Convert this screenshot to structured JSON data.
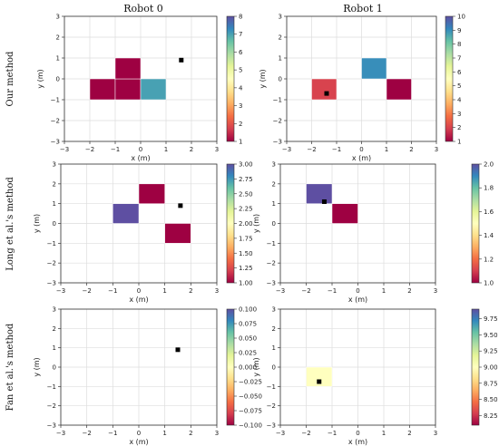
{
  "column_titles": [
    "Robot 0",
    "Robot 1"
  ],
  "row_titles": [
    "Our method",
    "Long et al.'s method",
    "Fan et al.'s method"
  ],
  "chart_data": [
    {
      "type": "heatmap",
      "method": "Our method",
      "robot": "Robot 0",
      "xlabel": "x (m)",
      "ylabel": "y (m)",
      "xlim": [
        -3,
        3
      ],
      "ylim": [
        -3,
        3
      ],
      "xticks": [
        "−3",
        "−2",
        "−1",
        "0",
        "1",
        "2",
        "3"
      ],
      "yticks": [
        "−3",
        "−2",
        "−1",
        "0",
        "1",
        "2",
        "3"
      ],
      "cells": [
        {
          "x0": -2,
          "x1": -1,
          "y0": -1,
          "y1": 0,
          "value": 1
        },
        {
          "x0": -1,
          "x1": 0,
          "y0": -1,
          "y1": 0,
          "value": 1
        },
        {
          "x0": -1,
          "x1": 0,
          "y0": 0,
          "y1": 1,
          "value": 1
        },
        {
          "x0": 0,
          "x1": 1,
          "y0": -1,
          "y1": 0,
          "value": 7
        }
      ],
      "robot_position": {
        "x": 1.6,
        "y": 0.9
      },
      "colorbar": {
        "min": 1,
        "max": 8,
        "ticks": [
          "1",
          "2",
          "3",
          "4",
          "5",
          "6",
          "7",
          "8"
        ]
      }
    },
    {
      "type": "heatmap",
      "method": "Our method",
      "robot": "Robot 1",
      "xlabel": "x (m)",
      "ylabel": "y (m)",
      "xlim": [
        -3,
        3
      ],
      "ylim": [
        -3,
        3
      ],
      "xticks": [
        "−3",
        "−2",
        "−1",
        "0",
        "1",
        "2",
        "3"
      ],
      "yticks": [
        "−3",
        "−2",
        "−1",
        "0",
        "1",
        "2",
        "3"
      ],
      "cells": [
        {
          "x0": -2,
          "x1": -1,
          "y0": -1,
          "y1": 0,
          "value": 2
        },
        {
          "x0": 0,
          "x1": 1,
          "y0": 0,
          "y1": 1,
          "value": 9
        },
        {
          "x0": 1,
          "x1": 2,
          "y0": -1,
          "y1": 0,
          "value": 1
        }
      ],
      "robot_position": {
        "x": -1.4,
        "y": -0.7
      },
      "colorbar": {
        "min": 1,
        "max": 10,
        "ticks": [
          "1",
          "2",
          "3",
          "4",
          "5",
          "6",
          "7",
          "8",
          "9",
          "10"
        ]
      }
    },
    {
      "type": "heatmap",
      "method": "Long et al.'s method",
      "robot": "Robot 0",
      "xlabel": "x (m)",
      "ylabel": "y (m)",
      "xlim": [
        -3,
        3
      ],
      "ylim": [
        -3,
        3
      ],
      "xticks": [
        "−3",
        "−2",
        "−1",
        "0",
        "1",
        "2",
        "3"
      ],
      "yticks": [
        "−3",
        "−2",
        "−1",
        "0",
        "1",
        "2",
        "3"
      ],
      "cells": [
        {
          "x0": 0,
          "x1": 1,
          "y0": 1,
          "y1": 2,
          "value": 1.0
        },
        {
          "x0": -1,
          "x1": 0,
          "y0": 0,
          "y1": 1,
          "value": 3.0
        },
        {
          "x0": 1,
          "x1": 2,
          "y0": -1,
          "y1": 0,
          "value": 1.0
        }
      ],
      "robot_position": {
        "x": 1.6,
        "y": 0.9
      },
      "colorbar": {
        "min": 1.0,
        "max": 3.0,
        "ticks": [
          "1.00",
          "1.25",
          "1.50",
          "1.75",
          "2.00",
          "2.25",
          "2.50",
          "2.75",
          "3.00"
        ]
      }
    },
    {
      "type": "heatmap",
      "method": "Long et al.'s method",
      "robot": "Robot 1",
      "xlabel": "x (m)",
      "ylabel": "y (m)",
      "xlim": [
        -3,
        3
      ],
      "ylim": [
        -3,
        3
      ],
      "xticks": [
        "−3",
        "−2",
        "−1",
        "0",
        "1",
        "2",
        "3"
      ],
      "yticks": [
        "−3",
        "−2",
        "−1",
        "0",
        "1",
        "2",
        "3"
      ],
      "cells": [
        {
          "x0": -2,
          "x1": -1,
          "y0": 1,
          "y1": 2,
          "value": 2.0
        },
        {
          "x0": -1,
          "x1": 0,
          "y0": 0,
          "y1": 1,
          "value": 1.0
        }
      ],
      "robot_position": {
        "x": -1.3,
        "y": 1.1
      },
      "colorbar": {
        "min": 1.0,
        "max": 2.0,
        "ticks": [
          "1.0",
          "1.2",
          "1.4",
          "1.6",
          "1.8",
          "2.0"
        ]
      }
    },
    {
      "type": "heatmap",
      "method": "Fan et al.'s method",
      "robot": "Robot 0",
      "xlabel": "x (m)",
      "ylabel": "y (m)",
      "xlim": [
        -3,
        3
      ],
      "ylim": [
        -3,
        3
      ],
      "xticks": [
        "−3",
        "−2",
        "−1",
        "0",
        "1",
        "2",
        "3"
      ],
      "yticks": [
        "−3",
        "−2",
        "−1",
        "0",
        "1",
        "2",
        "3"
      ],
      "cells": [],
      "robot_position": {
        "x": 1.5,
        "y": 0.9
      },
      "colorbar": {
        "min": -0.1,
        "max": 0.1,
        "ticks": [
          "−0.100",
          "−0.075",
          "−0.050",
          "−0.025",
          "0.000",
          "0.025",
          "0.050",
          "0.075",
          "0.100"
        ]
      }
    },
    {
      "type": "heatmap",
      "method": "Fan et al.'s method",
      "robot": "Robot 1",
      "xlabel": "x (m)",
      "ylabel": "y (m)",
      "xlim": [
        -3,
        3
      ],
      "ylim": [
        -3,
        3
      ],
      "xticks": [
        "−3",
        "−2",
        "−1",
        "0",
        "1",
        "2",
        "3"
      ],
      "yticks": [
        "−3",
        "−2",
        "−1",
        "0",
        "1",
        "2",
        "3"
      ],
      "cells": [
        {
          "x0": -2,
          "x1": -1,
          "y0": -1,
          "y1": 0,
          "value": 9.0
        }
      ],
      "robot_position": {
        "x": -1.5,
        "y": -0.75
      },
      "colorbar": {
        "min": 8.1,
        "max": 9.9,
        "ticks": [
          "8.25",
          "8.50",
          "8.75",
          "9.00",
          "9.25",
          "9.50",
          "9.75"
        ]
      }
    }
  ]
}
